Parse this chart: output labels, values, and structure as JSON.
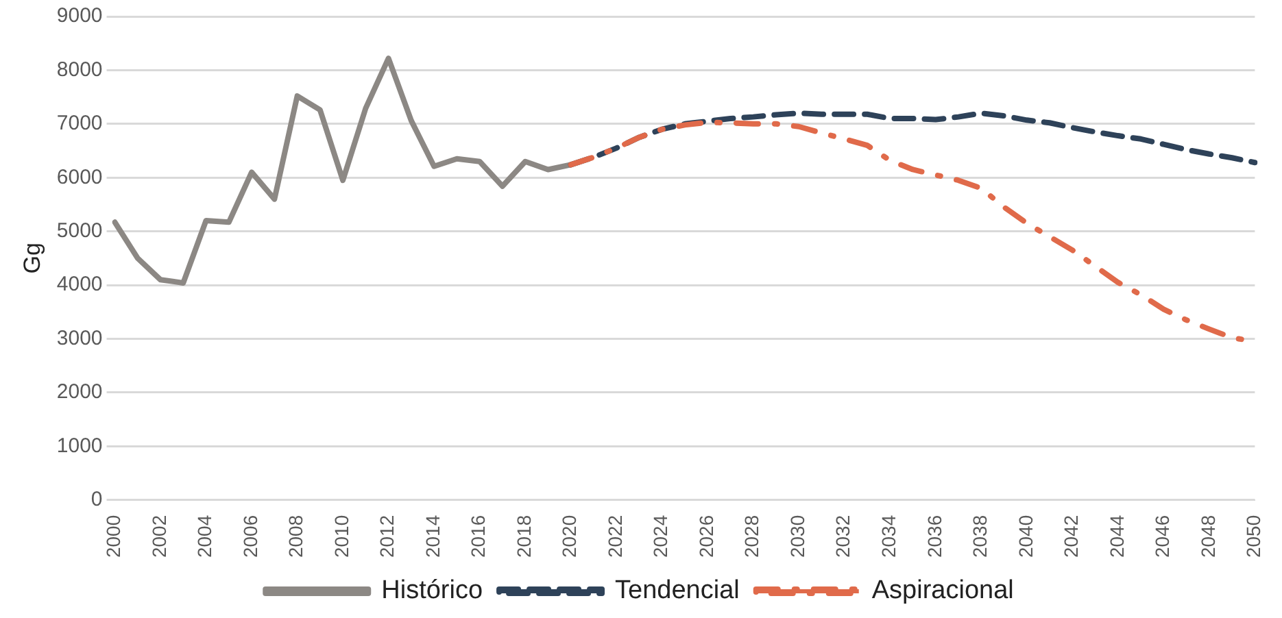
{
  "chart_data": {
    "type": "line",
    "ylabel": "Gg",
    "categories": [
      "2000",
      null,
      "2002",
      null,
      "2004",
      null,
      "2006",
      null,
      "2008",
      null,
      "2010",
      null,
      "2012",
      null,
      "2014",
      null,
      "2016",
      null,
      "2018",
      null,
      "2020",
      null,
      "2022",
      null,
      "2024",
      null,
      "2026",
      null,
      "2028",
      null,
      "2030",
      null,
      "2032",
      null,
      "2034",
      null,
      "2036",
      null,
      "2038",
      null,
      "2040",
      null,
      "2042",
      null,
      "2044",
      null,
      "2046",
      null,
      "2048",
      null,
      "2050"
    ],
    "series": [
      {
        "name": "Histórico",
        "color": "#8c8884",
        "line_style": "solid",
        "values": [
          5170,
          4500,
          4100,
          4040,
          5200,
          5170,
          6100,
          5600,
          7520,
          7260,
          5950,
          7290,
          8220,
          7060,
          6210,
          6350,
          6300,
          5840,
          6300,
          6150,
          6240,
          null,
          null,
          null,
          null,
          null,
          null,
          null,
          null,
          null,
          null,
          null,
          null,
          null,
          null,
          null,
          null,
          null,
          null,
          null,
          null,
          null,
          null,
          null,
          null,
          null,
          null,
          null,
          null,
          null,
          null
        ]
      },
      {
        "name": "Tendencial",
        "color": "#2e4259",
        "line_style": "dashed",
        "values": [
          null,
          null,
          null,
          null,
          null,
          null,
          null,
          null,
          null,
          null,
          null,
          null,
          null,
          null,
          null,
          null,
          null,
          null,
          null,
          null,
          6240,
          6380,
          6550,
          6750,
          6900,
          7000,
          7050,
          7100,
          7130,
          7170,
          7200,
          7180,
          7180,
          7180,
          7100,
          7100,
          7080,
          7130,
          7200,
          7150,
          7070,
          7020,
          6930,
          6850,
          6780,
          6720,
          6620,
          6520,
          6440,
          6370,
          6280
        ]
      },
      {
        "name": "Aspiracional",
        "color": "#e06a4a",
        "line_style": "dashdot",
        "values": [
          null,
          null,
          null,
          null,
          null,
          null,
          null,
          null,
          null,
          null,
          null,
          null,
          null,
          null,
          null,
          null,
          null,
          null,
          null,
          null,
          6240,
          6380,
          6550,
          6750,
          6900,
          6980,
          7030,
          7020,
          7000,
          7000,
          6950,
          6830,
          6720,
          6600,
          6320,
          6150,
          6050,
          5950,
          5800,
          5450,
          5150,
          4900,
          4650,
          4350,
          4050,
          3820,
          3550,
          3350,
          3180,
          3020,
          2950
        ]
      }
    ],
    "ylim": [
      0,
      9000
    ],
    "yticks": [
      0,
      1000,
      2000,
      3000,
      4000,
      5000,
      6000,
      7000,
      8000,
      9000
    ],
    "grid": "y",
    "legend": "bottom",
    "marker": "none"
  }
}
